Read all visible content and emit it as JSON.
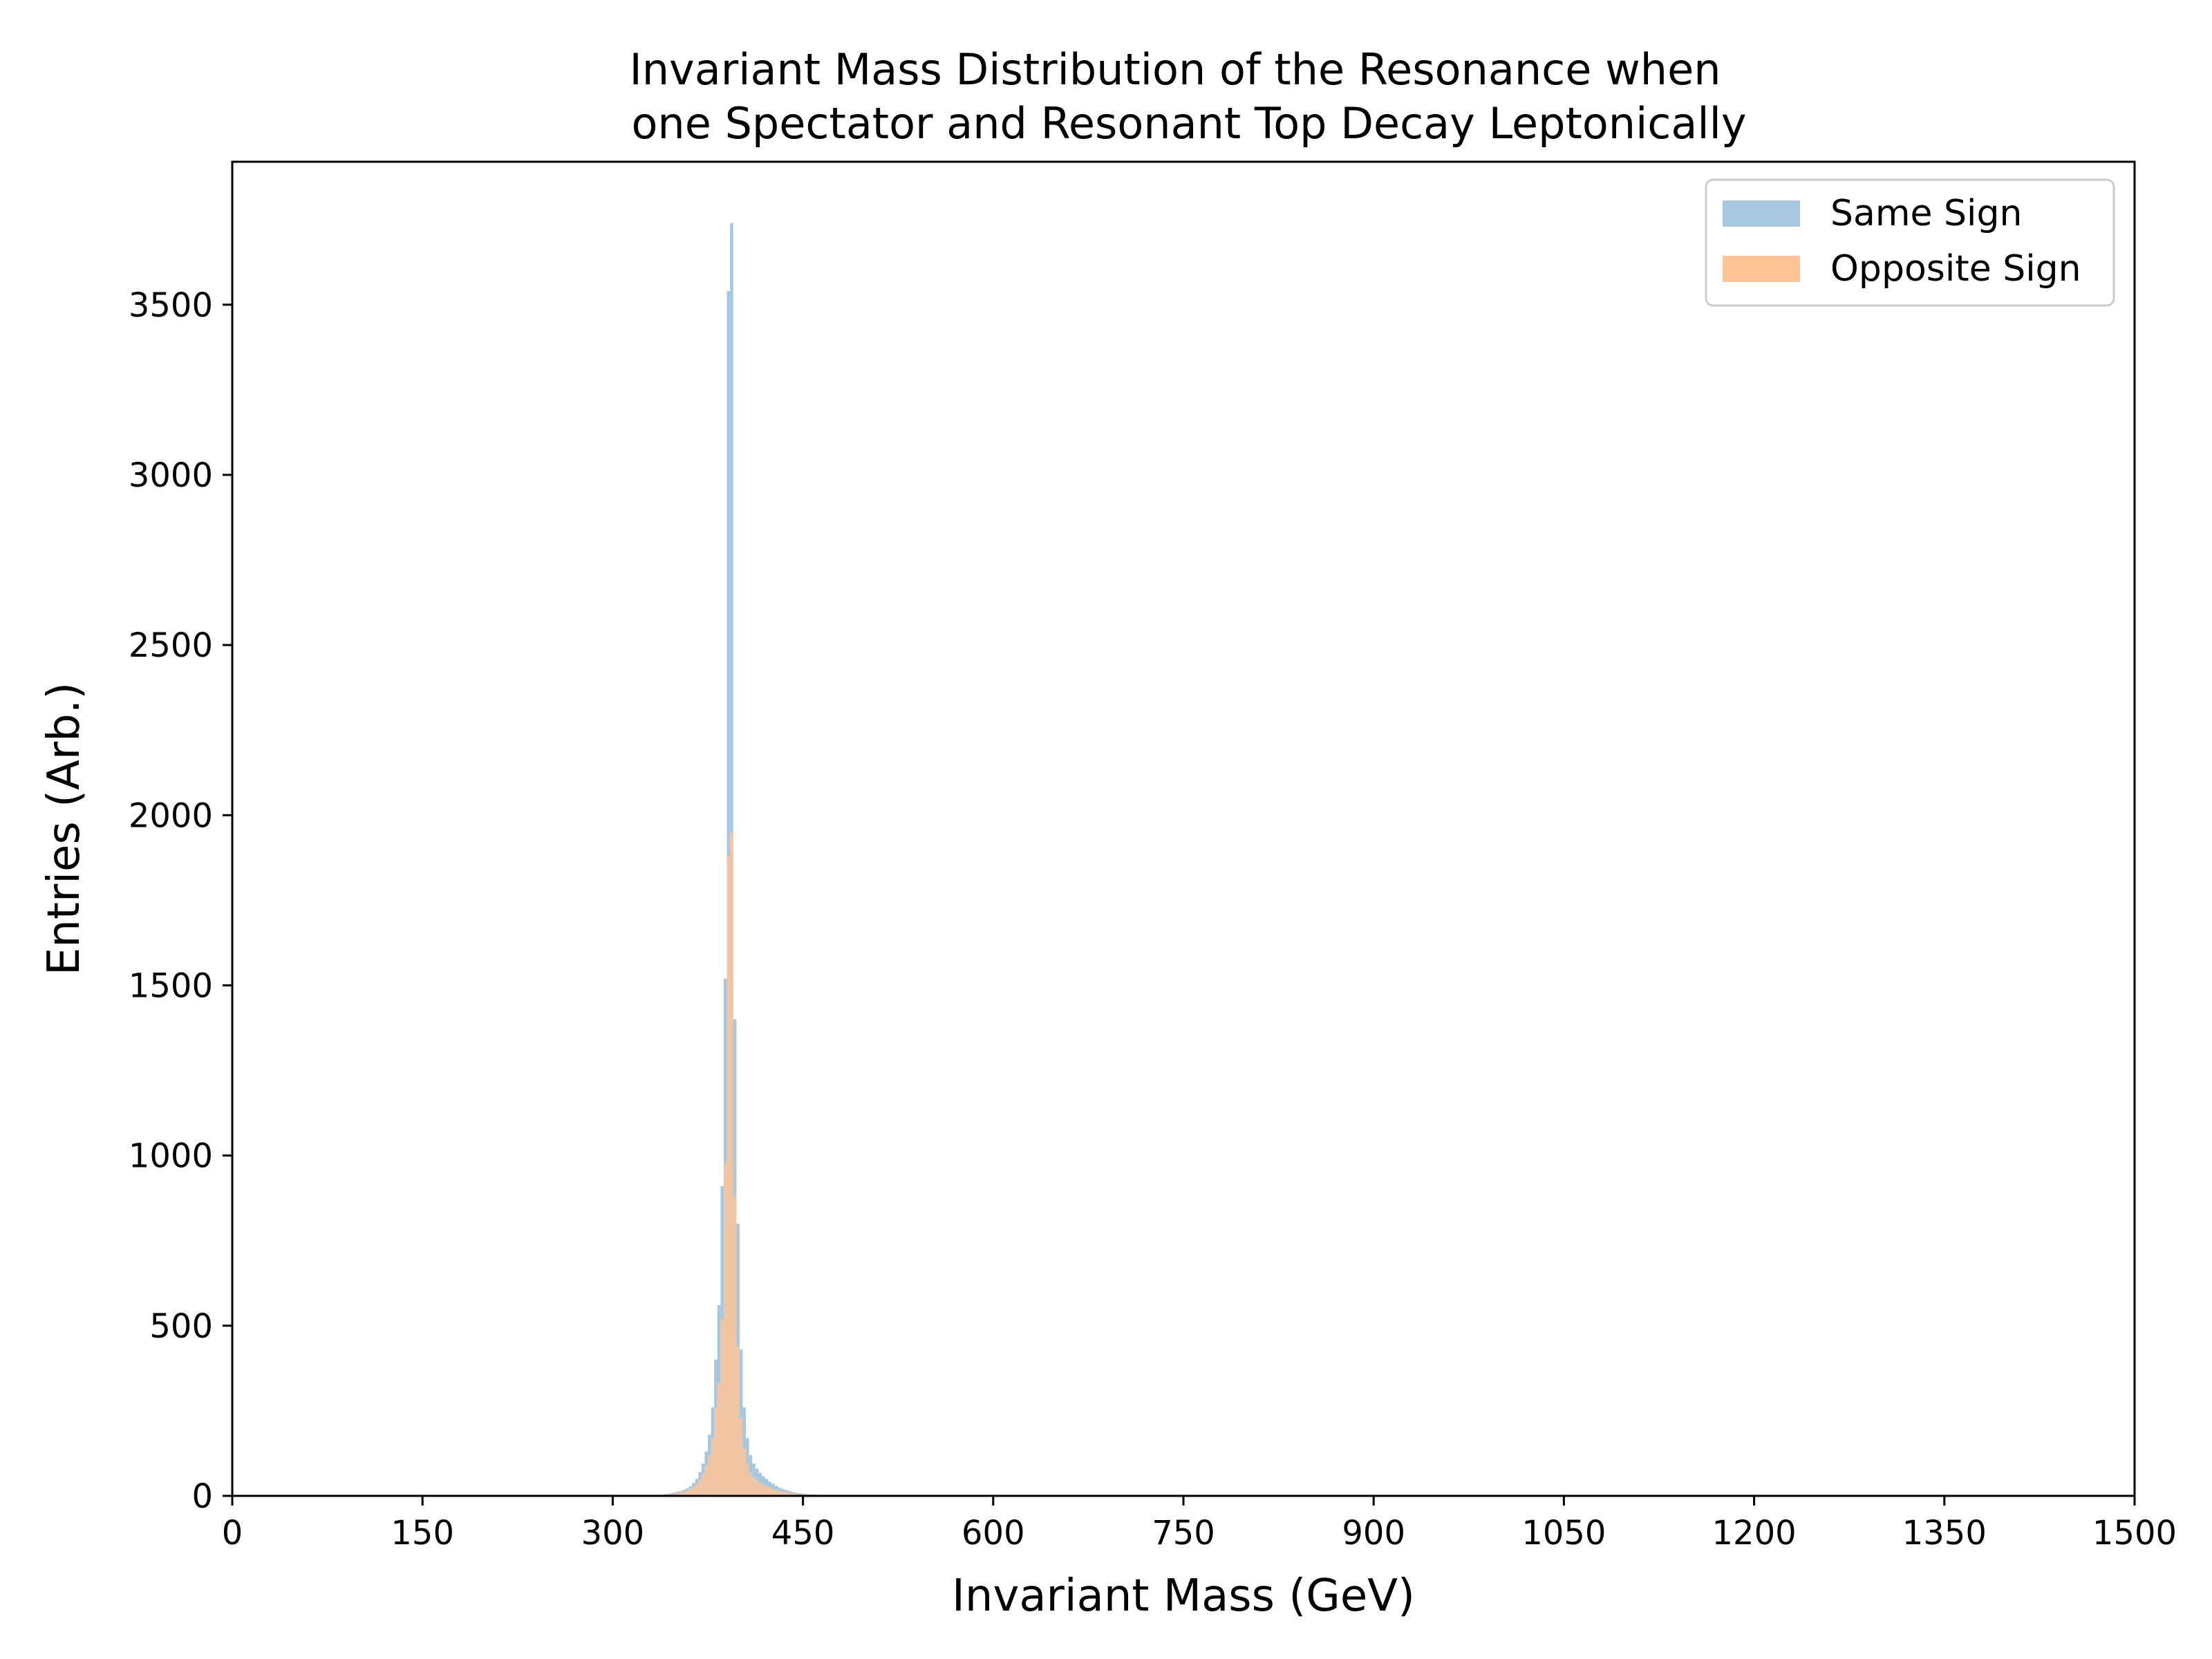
{
  "chart_data": {
    "type": "histogram",
    "title_line1": "Invariant Mass Distribution of the Resonance when",
    "title_line2": "one Spectator and Resonant Top Decay Leptonically",
    "xlabel": "Invariant Mass (GeV)",
    "ylabel": "Entries (Arb.)",
    "xlim": [
      0,
      1500
    ],
    "ylim": [
      0,
      3920
    ],
    "xticks": [
      0,
      150,
      300,
      450,
      600,
      750,
      900,
      1050,
      1200,
      1350,
      1500
    ],
    "xtick_labels": [
      "0",
      "150",
      "300",
      "450",
      "600",
      "750",
      "900",
      "1050",
      "1200",
      "1350",
      "1500"
    ],
    "yticks": [
      0,
      500,
      1000,
      1500,
      2000,
      2500,
      3000,
      3500
    ],
    "ytick_labels": [
      "0",
      "500",
      "1000",
      "1500",
      "2000",
      "2500",
      "3000",
      "3500"
    ],
    "legend_position": "top-right",
    "grid": false,
    "bins": {
      "start": 340,
      "width": 2.5,
      "count": 56
    },
    "series": [
      {
        "name": "Same Sign",
        "color": "#a6c7e0",
        "values": [
          5,
          6,
          8,
          10,
          12,
          14,
          18,
          22,
          28,
          38,
          50,
          70,
          95,
          130,
          180,
          260,
          400,
          560,
          910,
          1520,
          3540,
          3740,
          1400,
          800,
          430,
          260,
          170,
          120,
          95,
          80,
          68,
          58,
          50,
          42,
          36,
          30,
          25,
          21,
          18,
          15,
          12,
          10,
          8,
          7,
          6,
          5,
          4,
          4,
          3,
          3,
          2,
          2,
          2,
          1,
          1,
          1
        ]
      },
      {
        "name": "Opposite Sign",
        "color": "#ffc496",
        "values": [
          3,
          4,
          5,
          6,
          8,
          10,
          12,
          15,
          20,
          27,
          36,
          48,
          65,
          90,
          120,
          170,
          260,
          330,
          520,
          980,
          1880,
          1950,
          880,
          440,
          230,
          140,
          95,
          68,
          55,
          46,
          40,
          34,
          29,
          25,
          21,
          18,
          15,
          13,
          11,
          9,
          8,
          6,
          5,
          4,
          4,
          3,
          3,
          2,
          2,
          2,
          1,
          1,
          1,
          1,
          1,
          0
        ]
      }
    ]
  }
}
